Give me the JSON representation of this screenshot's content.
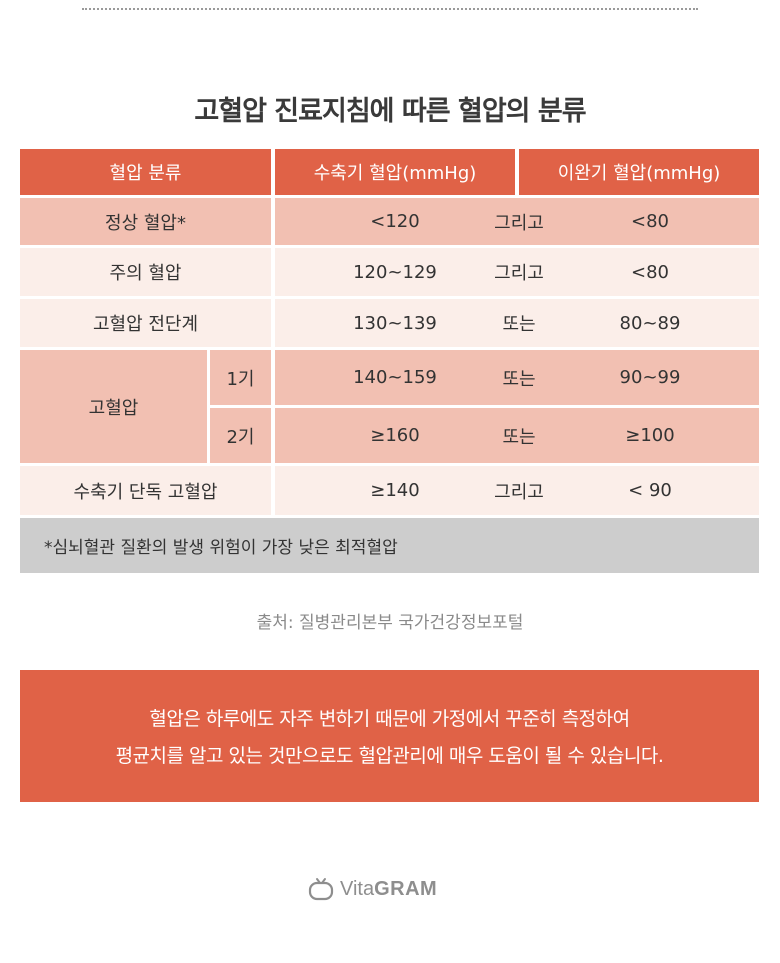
{
  "title": "고혈압 진료지침에 따른 혈압의 분류",
  "table": {
    "headers": [
      "혈압 분류",
      "수축기 혈압(mmHg)",
      "이완기 혈압(mmHg)"
    ],
    "rows": [
      {
        "category": "정상 혈압*",
        "systolic": "<120",
        "connector": "그리고",
        "diastolic": "<80"
      },
      {
        "category": "주의 혈압",
        "systolic": "120~129",
        "connector": "그리고",
        "diastolic": "<80"
      },
      {
        "category": "고혈압 전단계",
        "systolic": "130~139",
        "connector": "또는",
        "diastolic": "80~89"
      },
      {
        "category": "고혈압",
        "stage": "1기",
        "systolic": "140~159",
        "connector": "또는",
        "diastolic": "90~99"
      },
      {
        "stage": "2기",
        "systolic": "≥160",
        "connector": "또는",
        "diastolic": "≥100"
      },
      {
        "category": "수축기 단독 고혈압",
        "systolic": "≥140",
        "connector": "그리고",
        "diastolic": "< 90"
      }
    ],
    "note": "*심뇌혈관 질환의 발생 위험이 가장 낮은 최적혈압"
  },
  "source": "출처: 질병관리본부 국가건강정보포털",
  "banner": {
    "line1": "혈압은 하루에도 자주 변하기 때문에 가정에서 꾸준히 측정하여",
    "line2": "평균치를 알고 있는 것만으로도 혈압관리에 매우 도움이 될 수 있습니다."
  },
  "logo": {
    "prefix": "Vita",
    "suffix": "GRAM",
    "icon": "tv-icon"
  },
  "colors": {
    "accent": "#e06247",
    "row_dark": "#f2c0b2",
    "row_light": "#fbeee9",
    "note_bg": "#cdcdcd"
  }
}
